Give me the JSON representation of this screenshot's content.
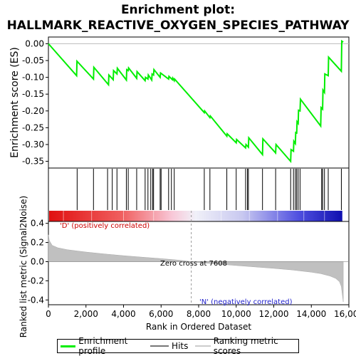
{
  "title_lines": [
    "Enrichment plot:",
    "HALLMARK_REACTIVE_OXYGEN_SPECIES_PATHWAY"
  ],
  "legend": {
    "items": [
      {
        "label": "Enrichment profile",
        "color": "#00ee00"
      },
      {
        "label": "Hits",
        "color": "#777777"
      },
      {
        "label": "Ranking metric scores",
        "color": "#cccccc"
      }
    ]
  },
  "chart_data": [
    {
      "type": "line",
      "name": "enrichment-profile",
      "ylabel": "Enrichment score (ES)",
      "ylim": [
        -0.37,
        0.02
      ],
      "xlim": [
        0,
        16000
      ],
      "yticks": [
        "0.00",
        "-0.05",
        "-0.10",
        "-0.15",
        "-0.20",
        "-0.25",
        "-0.30",
        "-0.35"
      ],
      "ytick_values": [
        0,
        -0.05,
        -0.1,
        -0.15,
        -0.2,
        -0.25,
        -0.3,
        -0.35
      ],
      "color": "#00ee00",
      "x": [
        0,
        1500,
        1520,
        2400,
        2420,
        3200,
        3220,
        3450,
        3470,
        3650,
        3670,
        4150,
        4170,
        4250,
        4270,
        4700,
        4720,
        5150,
        5170,
        5300,
        5320,
        5500,
        5520,
        5600,
        5620,
        5950,
        5970,
        6400,
        6420,
        6600,
        6620,
        6700,
        6720,
        8300,
        8320,
        8600,
        8620,
        9500,
        9520,
        10000,
        10020,
        10500,
        10520,
        10650,
        10670,
        11400,
        11420,
        12100,
        12120,
        12900,
        12920,
        13050,
        13070,
        13150,
        13170,
        13220,
        13240,
        13300,
        13320,
        13400,
        13420,
        14500,
        14520,
        14600,
        14620,
        14700,
        14720,
        14900,
        14920,
        15600,
        15620,
        15700
      ],
      "y": [
        0,
        -0.095,
        -0.052,
        -0.105,
        -0.07,
        -0.122,
        -0.093,
        -0.107,
        -0.08,
        -0.09,
        -0.073,
        -0.108,
        -0.077,
        -0.08,
        -0.072,
        -0.103,
        -0.083,
        -0.11,
        -0.1,
        -0.105,
        -0.093,
        -0.108,
        -0.09,
        -0.093,
        -0.077,
        -0.1,
        -0.087,
        -0.105,
        -0.097,
        -0.107,
        -0.102,
        -0.11,
        -0.105,
        -0.205,
        -0.2,
        -0.22,
        -0.215,
        -0.275,
        -0.268,
        -0.295,
        -0.285,
        -0.31,
        -0.3,
        -0.308,
        -0.28,
        -0.33,
        -0.283,
        -0.325,
        -0.3,
        -0.35,
        -0.315,
        -0.32,
        -0.29,
        -0.297,
        -0.262,
        -0.268,
        -0.232,
        -0.237,
        -0.198,
        -0.2,
        -0.165,
        -0.245,
        -0.19,
        -0.195,
        -0.138,
        -0.145,
        -0.09,
        -0.095,
        -0.04,
        -0.082,
        0.008,
        0.005
      ]
    },
    {
      "type": "bar",
      "name": "hits",
      "hit_positions": [
        1530,
        2400,
        3150,
        3400,
        3650,
        4150,
        4250,
        4700,
        5150,
        5300,
        5450,
        5550,
        5600,
        5950,
        6000,
        6400,
        6550,
        6700,
        8300,
        8600,
        9500,
        10000,
        10500,
        10600,
        10650,
        11400,
        12100,
        12900,
        13050,
        13150,
        13220,
        13300,
        13400,
        14550,
        14600,
        14700,
        14900,
        15600
      ]
    },
    {
      "type": "area",
      "name": "ranked-list-metric",
      "xlabel": "Rank in Ordered Dataset",
      "ylabel": "Ranked list metric (Signal2Noise)",
      "ylim": [
        -0.45,
        0.42
      ],
      "xlim": [
        0,
        16000
      ],
      "yticks": [
        "0.4",
        "0.2",
        "0.0",
        "-0.2",
        "-0.4"
      ],
      "ytick_values": [
        0.4,
        0.2,
        0,
        -0.2,
        -0.4
      ],
      "xticks": [
        "0",
        "2,000",
        "4,000",
        "6,000",
        "8,000",
        "10,000",
        "12,000",
        "14,000",
        "16,000"
      ],
      "xtick_values": [
        0,
        2000,
        4000,
        6000,
        8000,
        10000,
        12000,
        14000,
        16000
      ],
      "x": [
        0,
        50,
        200,
        500,
        1000,
        2000,
        3000,
        4000,
        5000,
        6000,
        7000,
        7608,
        8000,
        9000,
        10000,
        11000,
        12000,
        13000,
        14000,
        14500,
        15000,
        15300,
        15500,
        15600,
        15700
      ],
      "values": [
        0.28,
        0.22,
        0.17,
        0.145,
        0.125,
        0.1,
        0.08,
        0.062,
        0.047,
        0.032,
        0.015,
        0.0,
        -0.01,
        -0.025,
        -0.04,
        -0.055,
        -0.07,
        -0.087,
        -0.11,
        -0.125,
        -0.15,
        -0.175,
        -0.21,
        -0.26,
        -0.42
      ],
      "zero_cross": 7608,
      "annotations": {
        "zero_cross": "Zero cross at 7608",
        "positive": "'D' (positively correlated)",
        "negative": "'N' (negatively correlated)"
      }
    }
  ]
}
